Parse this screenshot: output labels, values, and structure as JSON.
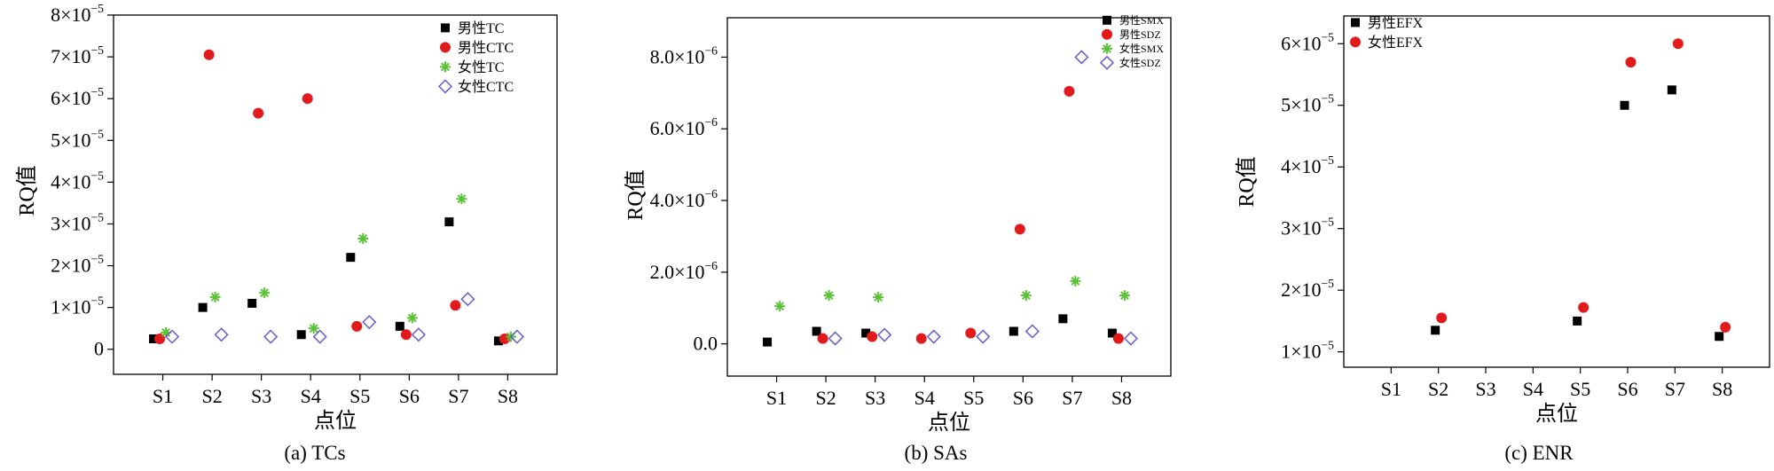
{
  "chart_data": [
    {
      "type": "scatter",
      "caption": "(a) TCs",
      "xlabel": "点位",
      "ylabel": "RQ值",
      "categories": [
        "S1",
        "S2",
        "S3",
        "S4",
        "S5",
        "S6",
        "S7",
        "S8"
      ],
      "ylim": [
        -6e-06,
        8e-05
      ],
      "yticks": [
        0,
        1e-05,
        2e-05,
        3e-05,
        4e-05,
        5e-05,
        6e-05,
        7e-05,
        8e-05
      ],
      "ytick_labels": [
        {
          "m": "0",
          "e": ""
        },
        {
          "m": "1×10",
          "e": "−5"
        },
        {
          "m": "2×10",
          "e": "−5"
        },
        {
          "m": "3×10",
          "e": "−5"
        },
        {
          "m": "4×10",
          "e": "−5"
        },
        {
          "m": "5×10",
          "e": "−5"
        },
        {
          "m": "6×10",
          "e": "−5"
        },
        {
          "m": "7×10",
          "e": "−5"
        },
        {
          "m": "8×10",
          "e": "−5"
        }
      ],
      "legend_position": "top-right",
      "series": [
        {
          "name": "男性TC",
          "marker": "square",
          "color": "#000000",
          "values": [
            2.5e-06,
            1e-05,
            1.1e-05,
            3.5e-06,
            2.2e-05,
            5.5e-06,
            3.05e-05,
            2e-06
          ]
        },
        {
          "name": "男性CTC",
          "marker": "circle",
          "color": "#e31a1c",
          "values": [
            2.5e-06,
            7.05e-05,
            5.65e-05,
            6e-05,
            5.5e-06,
            3.5e-06,
            1.05e-05,
            2.5e-06
          ]
        },
        {
          "name": "女性TC",
          "marker": "asterisk",
          "color": "#5bc236",
          "values": [
            4e-06,
            1.25e-05,
            1.35e-05,
            5e-06,
            2.65e-05,
            7.5e-06,
            3.6e-05,
            3e-06
          ]
        },
        {
          "name": "女性CTC",
          "marker": "diamond",
          "color": "#6a5acd",
          "values": [
            3e-06,
            3.5e-06,
            3e-06,
            3e-06,
            6.5e-06,
            3.5e-06,
            1.2e-05,
            3e-06
          ]
        }
      ]
    },
    {
      "type": "scatter",
      "caption": "(b) SAs",
      "xlabel": "点位",
      "ylabel": "RQ值",
      "categories": [
        "S1",
        "S2",
        "S3",
        "S4",
        "S5",
        "S6",
        "S7",
        "S8"
      ],
      "ylim": [
        -9e-07,
        9.1e-06
      ],
      "yticks": [
        0,
        2e-06,
        4e-06,
        6e-06,
        8e-06
      ],
      "ytick_labels": [
        {
          "m": "0.0",
          "e": ""
        },
        {
          "m": "2.0×10",
          "e": "−6"
        },
        {
          "m": "4.0×10",
          "e": "−6"
        },
        {
          "m": "6.0×10",
          "e": "−6"
        },
        {
          "m": "8.0×10",
          "e": "−6"
        }
      ],
      "legend_position": "top-right",
      "series": [
        {
          "name": "男性SMX",
          "marker": "square",
          "color": "#000000",
          "values": [
            5e-08,
            3.5e-07,
            3e-07,
            null,
            null,
            3.5e-07,
            7e-07,
            3e-07
          ]
        },
        {
          "name": "男性SDZ",
          "marker": "circle",
          "color": "#e31a1c",
          "values": [
            null,
            1.5e-07,
            2e-07,
            1.5e-07,
            3e-07,
            3.2e-06,
            7.05e-06,
            1.5e-07
          ]
        },
        {
          "name": "女性SMX",
          "marker": "asterisk",
          "color": "#5bc236",
          "values": [
            1.05e-06,
            1.35e-06,
            1.3e-06,
            null,
            null,
            1.35e-06,
            1.75e-06,
            1.35e-06
          ]
        },
        {
          "name": "女性SDZ",
          "marker": "diamond",
          "color": "#6a5acd",
          "values": [
            null,
            1.5e-07,
            2.5e-07,
            2e-07,
            2e-07,
            3.5e-07,
            8e-06,
            1.5e-07
          ]
        }
      ]
    },
    {
      "type": "scatter",
      "caption": "(c) ENR",
      "xlabel": "点位",
      "ylabel": "RQ值",
      "categories": [
        "S1",
        "S2",
        "S3",
        "S4",
        "S5",
        "S6",
        "S7",
        "S8"
      ],
      "ylim": [
        7.5e-06,
        6.45e-05
      ],
      "yticks": [
        1e-05,
        2e-05,
        3e-05,
        4e-05,
        5e-05,
        6e-05
      ],
      "ytick_labels": [
        {
          "m": "1×10",
          "e": "−5"
        },
        {
          "m": "2×10",
          "e": "−5"
        },
        {
          "m": "3×10",
          "e": "−5"
        },
        {
          "m": "4×10",
          "e": "−5"
        },
        {
          "m": "5×10",
          "e": "−5"
        },
        {
          "m": "6×10",
          "e": "−5"
        }
      ],
      "legend_position": "top-left",
      "series": [
        {
          "name": "男性EFX",
          "marker": "square",
          "color": "#000000",
          "values": [
            null,
            1.35e-05,
            null,
            null,
            1.5e-05,
            5e-05,
            5.25e-05,
            1.25e-05
          ]
        },
        {
          "name": "女性EFX",
          "marker": "circle",
          "color": "#e31a1c",
          "values": [
            null,
            1.55e-05,
            null,
            null,
            1.72e-05,
            5.7e-05,
            6e-05,
            1.4e-05
          ]
        }
      ]
    }
  ]
}
